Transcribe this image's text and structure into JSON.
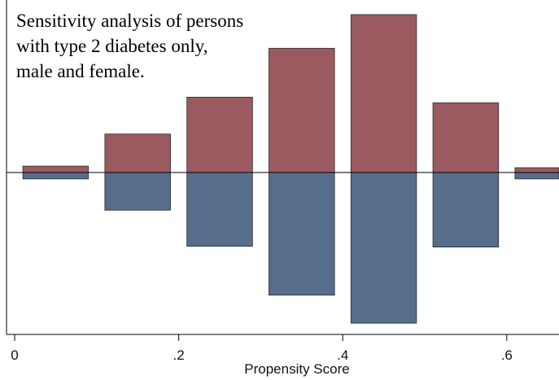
{
  "chart_data": {
    "type": "bar",
    "subtype": "mirrored-histogram",
    "annotation": [
      "Sensitivity analysis of persons",
      "with type 2 diabetes only,",
      "male and female."
    ],
    "xlabel": "Propensity Score",
    "ylabel": "",
    "x_ticks": [
      "0",
      ".2",
      ".4",
      ".6"
    ],
    "x_tick_values": [
      0,
      0.2,
      0.4,
      0.6
    ],
    "xlim": [
      -0.01,
      0.67
    ],
    "bin_width": 0.08,
    "bin_centers": [
      0.05,
      0.15,
      0.25,
      0.35,
      0.45,
      0.55,
      0.65
    ],
    "series": [
      {
        "values": [
          0.8,
          4.8,
          9.4,
          15.5,
          19.7,
          8.7,
          0.6
        ]
      },
      {
        "values": [
          -0.8,
          -4.7,
          -9.2,
          -15.3,
          -18.8,
          -9.3,
          -0.8
        ]
      }
    ],
    "ylim": [
      -20.0,
      20.0
    ],
    "colors": {
      "upper": "#9b5a5f",
      "lower": "#566d8c",
      "axis": "#000000"
    },
    "grid": false,
    "legend": "none"
  }
}
